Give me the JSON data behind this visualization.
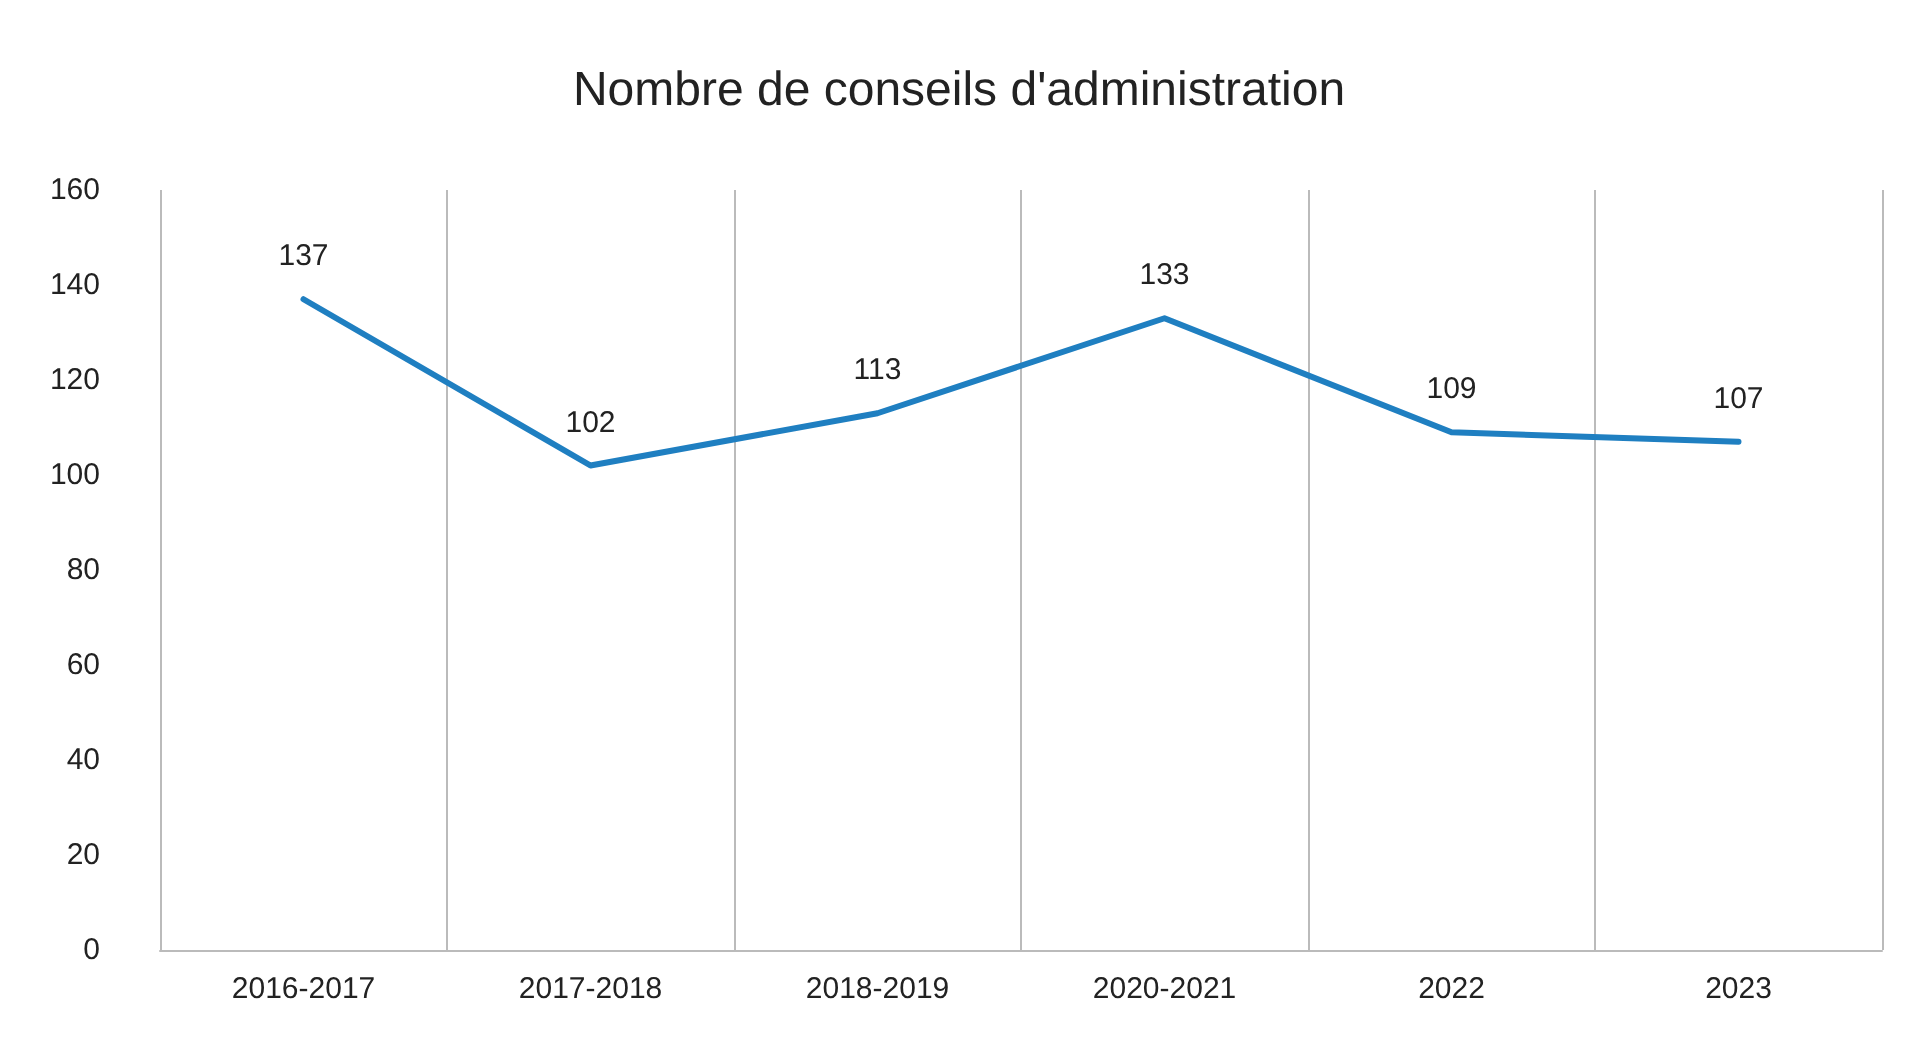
{
  "chart_data": {
    "type": "line",
    "title": "Nombre de conseils d'administration",
    "categories": [
      "2016-2017",
      "2017-2018",
      "2018-2019",
      "2020-2021",
      "2022",
      "2023"
    ],
    "series": [
      {
        "color": "#1f7fc1",
        "values": [
          137,
          102,
          113,
          133,
          109,
          107
        ]
      }
    ],
    "ylim": [
      0,
      160
    ],
    "yticks": [
      0,
      20,
      40,
      60,
      80,
      100,
      120,
      140,
      160
    ],
    "data_labels": true,
    "grid": "x",
    "marker": "none",
    "line_style": "solid"
  }
}
